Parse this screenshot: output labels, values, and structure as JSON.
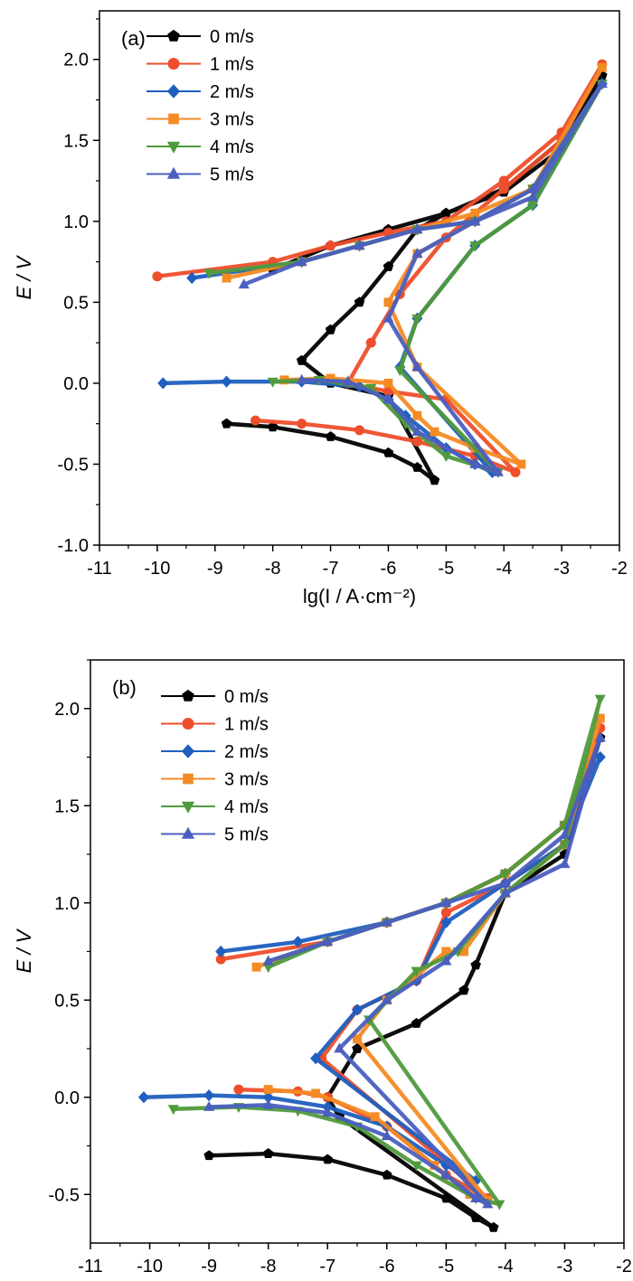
{
  "chart_data": [
    {
      "type": "line",
      "panel_label": "(a)",
      "xlabel": "lg(I / A·cm⁻²)",
      "ylabel": "E / V",
      "xlim": [
        -11,
        -2
      ],
      "ylim": [
        -1.0,
        2.3
      ],
      "x_ticks": [
        "-11",
        "-10",
        "-9",
        "-8",
        "-7",
        "-6",
        "-5",
        "-4",
        "-3",
        "-2"
      ],
      "y_ticks": [
        "-1.0",
        "-0.5",
        "0.0",
        "0.5",
        "1.0",
        "1.5",
        "2.0"
      ],
      "y_tick_values": [
        -1.0,
        -0.5,
        0.0,
        0.5,
        1.0,
        1.5,
        2.0
      ],
      "legend_position": "top-left",
      "series": [
        {
          "name": "0 m/s",
          "color": "#000000",
          "marker": "pentagon",
          "x": [
            -8.8,
            -8.0,
            -7.0,
            -6.0,
            -5.5,
            -5.2,
            -6.0,
            -7.0,
            -7.5,
            -7.0,
            -6.5,
            -6.0,
            -5.5,
            -5.0,
            -4.0,
            -3.0,
            -2.3,
            -3.0,
            -4.0,
            -5.0,
            -6.0,
            -7.0,
            -8.0
          ],
          "y": [
            -0.25,
            -0.27,
            -0.33,
            -0.43,
            -0.52,
            -0.6,
            -0.08,
            0.0,
            0.14,
            0.33,
            0.5,
            0.72,
            0.95,
            1.05,
            1.2,
            1.5,
            1.9,
            1.45,
            1.18,
            1.05,
            0.95,
            0.85,
            0.7
          ]
        },
        {
          "name": "1 m/s",
          "color": "#EE4E2B",
          "marker": "circle",
          "x": [
            -8.3,
            -7.5,
            -6.5,
            -5.5,
            -4.5,
            -3.8,
            -5.0,
            -6.0,
            -6.7,
            -6.3,
            -5.8,
            -5.0,
            -4.0,
            -3.0,
            -2.3,
            -3.0,
            -4.0,
            -5.0,
            -6.0,
            -7.0,
            -8.0,
            -10.0
          ],
          "y": [
            -0.23,
            -0.25,
            -0.29,
            -0.36,
            -0.45,
            -0.55,
            -0.1,
            -0.05,
            0.0,
            0.25,
            0.55,
            0.9,
            1.2,
            1.5,
            1.97,
            1.55,
            1.25,
            1.0,
            0.93,
            0.85,
            0.75,
            0.66
          ]
        },
        {
          "name": "2 m/s",
          "color": "#1F5FBF",
          "marker": "diamond",
          "x": [
            -9.9,
            -8.8,
            -7.5,
            -6.5,
            -6.0,
            -5.7,
            -5.0,
            -4.5,
            -4.2,
            -5.8,
            -5.5,
            -4.5,
            -3.5,
            -2.3,
            -3.5,
            -4.5,
            -5.5,
            -6.5,
            -7.5,
            -9.4
          ],
          "y": [
            0.0,
            0.01,
            0.01,
            -0.02,
            -0.1,
            -0.2,
            -0.4,
            -0.5,
            -0.55,
            0.1,
            0.4,
            0.85,
            1.1,
            1.85,
            1.2,
            1.0,
            0.95,
            0.85,
            0.75,
            0.65
          ]
        },
        {
          "name": "3 m/s",
          "color": "#F48B24",
          "marker": "square",
          "x": [
            -7.8,
            -7.0,
            -6.0,
            -5.5,
            -5.2,
            -4.5,
            -3.7,
            -5.5,
            -6.0,
            -5.5,
            -4.5,
            -3.5,
            -2.3,
            -3.5,
            -4.5,
            -5.5,
            -6.5,
            -7.5,
            -8.8
          ],
          "y": [
            0.02,
            0.03,
            0.0,
            -0.2,
            -0.3,
            -0.4,
            -0.5,
            0.1,
            0.5,
            0.8,
            1.0,
            1.2,
            1.95,
            1.2,
            1.05,
            0.95,
            0.85,
            0.75,
            0.65
          ]
        },
        {
          "name": "4 m/s",
          "color": "#4F9A3C",
          "marker": "triangle-down",
          "x": [
            -8.0,
            -7.2,
            -6.3,
            -5.7,
            -5.0,
            -4.1,
            -5.8,
            -5.5,
            -4.5,
            -3.5,
            -2.3,
            -3.5,
            -4.5,
            -5.5,
            -6.5,
            -7.5,
            -9.1
          ],
          "y": [
            0.01,
            0.02,
            -0.03,
            -0.25,
            -0.45,
            -0.55,
            0.08,
            0.4,
            0.85,
            1.1,
            1.85,
            1.2,
            1.0,
            0.95,
            0.85,
            0.75,
            0.68
          ]
        },
        {
          "name": "5 m/s",
          "color": "#4A5FBF",
          "marker": "triangle-up",
          "x": [
            -7.5,
            -6.7,
            -6.0,
            -5.5,
            -4.5,
            -4.1,
            -5.5,
            -6.0,
            -5.5,
            -4.5,
            -3.5,
            -2.3,
            -3.5,
            -4.5,
            -5.5,
            -6.5,
            -7.5,
            -8.5
          ],
          "y": [
            0.02,
            0.01,
            -0.1,
            -0.3,
            -0.5,
            -0.55,
            0.1,
            0.4,
            0.8,
            1.0,
            1.15,
            1.85,
            1.2,
            1.0,
            0.95,
            0.85,
            0.75,
            0.61
          ]
        }
      ]
    },
    {
      "type": "line",
      "panel_label": "(b)",
      "xlabel": "lg(I / A·cm⁻²)",
      "ylabel": "E / V",
      "xlim": [
        -11,
        -2
      ],
      "ylim": [
        -0.75,
        2.25
      ],
      "x_ticks": [
        "-11",
        "-10",
        "-9",
        "-8",
        "-7",
        "-6",
        "-5",
        "-4",
        "-3",
        "-2"
      ],
      "y_ticks": [
        "-0.5",
        "0.0",
        "0.5",
        "1.0",
        "1.5",
        "2.0"
      ],
      "y_tick_values": [
        -0.5,
        0.0,
        0.5,
        1.0,
        1.5,
        2.0
      ],
      "legend_position": "top-left",
      "series": [
        {
          "name": "0 m/s",
          "color": "#000000",
          "marker": "pentagon",
          "x": [
            -9.0,
            -8.0,
            -7.0,
            -6.0,
            -5.0,
            -4.5,
            -4.2,
            -6.8,
            -7.0,
            -6.5,
            -5.5,
            -4.7,
            -4.5,
            -4.0,
            -3.0,
            -2.4,
            -3.0,
            -4.0,
            -5.0,
            -6.0,
            -7.0
          ],
          "y": [
            -0.3,
            -0.29,
            -0.32,
            -0.4,
            -0.52,
            -0.62,
            -0.67,
            -0.1,
            0.0,
            0.25,
            0.38,
            0.55,
            0.68,
            1.05,
            1.25,
            1.85,
            1.4,
            1.15,
            1.0,
            0.9,
            0.8
          ]
        },
        {
          "name": "1 m/s",
          "color": "#EE4E2B",
          "marker": "circle",
          "x": [
            -8.5,
            -7.5,
            -7.0,
            -6.0,
            -5.0,
            -4.3,
            -7.1,
            -6.5,
            -5.5,
            -5.0,
            -4.0,
            -3.0,
            -2.4,
            -3.0,
            -4.0,
            -5.0,
            -6.0,
            -7.0,
            -8.8
          ],
          "y": [
            0.04,
            0.03,
            0.0,
            -0.15,
            -0.4,
            -0.52,
            0.2,
            0.45,
            0.6,
            0.95,
            1.1,
            1.3,
            1.9,
            1.4,
            1.15,
            1.0,
            0.9,
            0.8,
            0.71
          ]
        },
        {
          "name": "2 m/s",
          "color": "#1F5FBF",
          "marker": "diamond",
          "x": [
            -10.1,
            -9.0,
            -8.0,
            -7.0,
            -6.0,
            -5.0,
            -4.5,
            -7.2,
            -6.5,
            -5.5,
            -5.0,
            -4.0,
            -3.0,
            -2.4,
            -3.0,
            -4.0,
            -5.0,
            -6.0,
            -7.5,
            -8.8
          ],
          "y": [
            0.0,
            0.01,
            0.0,
            -0.05,
            -0.15,
            -0.35,
            -0.43,
            0.2,
            0.45,
            0.6,
            0.9,
            1.1,
            1.3,
            1.75,
            1.4,
            1.15,
            1.0,
            0.9,
            0.8,
            0.75
          ]
        },
        {
          "name": "3 m/s",
          "color": "#F48B24",
          "marker": "square",
          "x": [
            -8.0,
            -7.2,
            -6.2,
            -5.2,
            -4.6,
            -4.3,
            -6.5,
            -6.0,
            -5.0,
            -4.7,
            -4.0,
            -3.0,
            -2.4,
            -3.0,
            -4.0,
            -5.0,
            -6.0,
            -7.0,
            -8.2
          ],
          "y": [
            0.04,
            0.02,
            -0.1,
            -0.35,
            -0.5,
            -0.53,
            0.3,
            0.5,
            0.75,
            0.75,
            1.05,
            1.3,
            1.95,
            1.4,
            1.15,
            1.0,
            0.9,
            0.8,
            0.67
          ]
        },
        {
          "name": "4 m/s",
          "color": "#4F9A3C",
          "marker": "triangle-down",
          "x": [
            -9.6,
            -8.5,
            -7.5,
            -6.5,
            -5.5,
            -4.5,
            -4.1,
            -6.3,
            -5.5,
            -4.8,
            -4.0,
            -3.0,
            -2.4,
            -3.0,
            -4.0,
            -5.0,
            -6.0,
            -7.0,
            -8.0
          ],
          "y": [
            -0.06,
            -0.05,
            -0.07,
            -0.15,
            -0.35,
            -0.52,
            -0.55,
            0.4,
            0.65,
            0.75,
            1.05,
            1.3,
            2.05,
            1.4,
            1.15,
            1.0,
            0.9,
            0.8,
            0.67
          ]
        },
        {
          "name": "5 m/s",
          "color": "#4A5FBF",
          "marker": "triangle-up",
          "x": [
            -9.0,
            -8.0,
            -7.0,
            -6.0,
            -5.0,
            -4.5,
            -4.3,
            -6.8,
            -6.0,
            -5.0,
            -4.0,
            -3.0,
            -2.4,
            -3.0,
            -4.0,
            -5.0,
            -6.0,
            -7.0,
            -8.0
          ],
          "y": [
            -0.05,
            -0.04,
            -0.08,
            -0.2,
            -0.4,
            -0.52,
            -0.55,
            0.25,
            0.5,
            0.7,
            1.05,
            1.2,
            1.85,
            1.35,
            1.1,
            1.0,
            0.9,
            0.8,
            0.7
          ]
        }
      ]
    }
  ]
}
